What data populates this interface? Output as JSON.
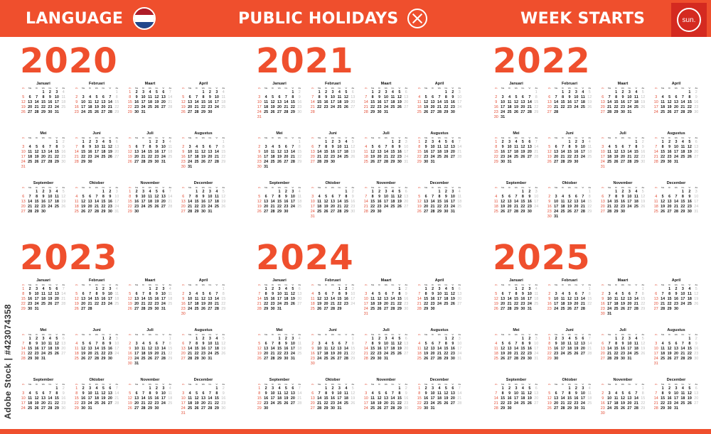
{
  "header": {
    "language_label": "LANGUAGE",
    "holidays_label": "PUBLIC HOLIDAYS",
    "week_starts_label": "WEEK STARTS",
    "week_start_value": "sun.",
    "flag_colors": [
      "#ae1c28",
      "#ffffff",
      "#21468b"
    ],
    "accent_color": "#ef4f2d"
  },
  "weekdays": [
    "Zo",
    "Ma",
    "Di",
    "Wo",
    "Do",
    "Vr",
    "Za"
  ],
  "months": [
    "Januari",
    "Februari",
    "Maart",
    "April",
    "Mei",
    "Juni",
    "Juli",
    "Augustus",
    "September",
    "Oktober",
    "November",
    "December"
  ],
  "years": [
    "2020",
    "2021",
    "2022",
    "2023",
    "2024",
    "2025"
  ],
  "watermark": "Adobe Stock | #423074358"
}
